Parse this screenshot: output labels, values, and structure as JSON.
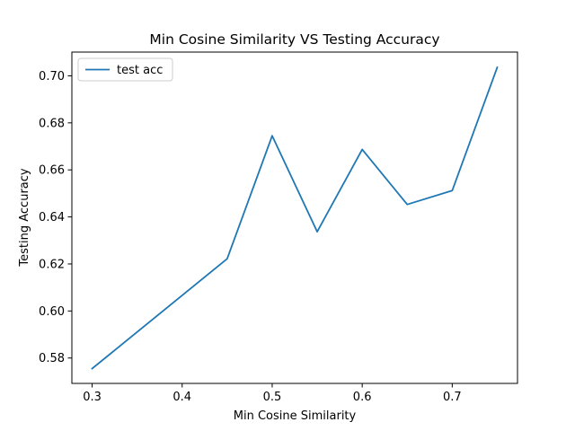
{
  "chart_data": {
    "type": "line",
    "title": "Min Cosine Similarity VS Testing Accuracy",
    "xlabel": "Min Cosine Similarity",
    "ylabel": "Testing Accuracy",
    "xlim": [
      0.2775,
      0.7725
    ],
    "ylim": [
      0.5692,
      0.7101
    ],
    "xticks": [
      0.3,
      0.4,
      0.5,
      0.6,
      0.7
    ],
    "yticks": [
      0.58,
      0.6,
      0.62,
      0.64,
      0.66,
      0.68,
      0.7
    ],
    "xtick_labels": [
      "0.3",
      "0.4",
      "0.5",
      "0.6",
      "0.7"
    ],
    "ytick_labels": [
      "0.58",
      "0.60",
      "0.62",
      "0.64",
      "0.66",
      "0.68",
      "0.70"
    ],
    "grid": false,
    "legend_position": "upper-left",
    "series": [
      {
        "name": "test acc",
        "color": "#1f77b4",
        "x": [
          0.3,
          0.45,
          0.5,
          0.55,
          0.6,
          0.65,
          0.7,
          0.75
        ],
        "y": [
          0.5755,
          0.6222,
          0.6745,
          0.6337,
          0.6687,
          0.6453,
          0.6512,
          0.7036
        ]
      }
    ]
  }
}
